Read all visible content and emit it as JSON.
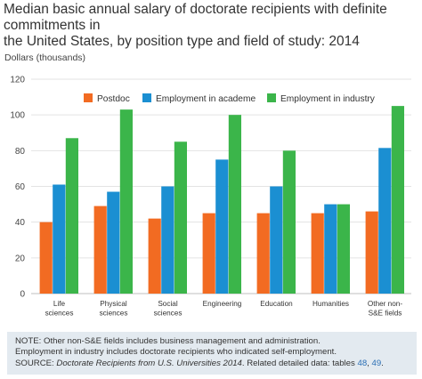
{
  "header": {
    "title_lines": [
      "Median basic annual salary of doctorate recipients with definite",
      "commitments in",
      "the United States, by position type and field of study: 2014"
    ],
    "unit_label": "Dollars (thousands)"
  },
  "notes": {
    "note": "NOTE: Other non-S&E fields includes business management and administration.",
    "employment": "Employment in industry includes doctorate recipients who indicated self-employment.",
    "source_prefix": "SOURCE: ",
    "source_title": "Doctorate Recipients from U.S. Universities 2014",
    "source_middle": ". Related detailed data: tables ",
    "table_1": "48",
    "separator": ", ",
    "table_2": "49",
    "source_end": "."
  },
  "chart_data": {
    "type": "bar",
    "title": "",
    "xlabel": "",
    "ylabel": "Dollars (thousands)",
    "ylim": [
      0,
      120
    ],
    "yticks": [
      "0",
      "20",
      "40",
      "60",
      "80",
      "100",
      "120"
    ],
    "grid": true,
    "legend_position": "top",
    "categories": [
      [
        "Life",
        "sciences"
      ],
      [
        "Physical",
        "sciences"
      ],
      [
        "Social",
        "sciences"
      ],
      [
        "Engineering"
      ],
      [
        "Education"
      ],
      [
        "Humanities"
      ],
      [
        "Other non-",
        "S&E fields"
      ]
    ],
    "series": [
      {
        "name": "Postdoc",
        "color": "#f26b22",
        "values": [
          40,
          49,
          42,
          45,
          45,
          45,
          46
        ]
      },
      {
        "name": "Employment in academe",
        "color": "#1b8fd2",
        "values": [
          61,
          57,
          60,
          75,
          60,
          50,
          81.5
        ]
      },
      {
        "name": "Employment in industry",
        "color": "#3bb54a",
        "values": [
          87,
          103,
          85,
          100,
          80,
          50,
          105
        ]
      }
    ]
  }
}
